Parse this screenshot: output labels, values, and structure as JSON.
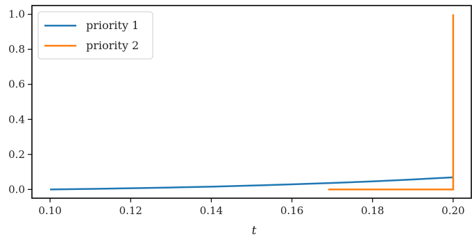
{
  "chart_data": {
    "type": "line",
    "xlabel": "t",
    "ylabel": "",
    "xlim": [
      0.0955,
      0.2045
    ],
    "ylim": [
      -0.05,
      1.05
    ],
    "xticks": [
      0.1,
      0.12,
      0.14,
      0.16,
      0.18,
      0.2
    ],
    "xtick_labels": [
      "0.10",
      "0.12",
      "0.14",
      "0.16",
      "0.18",
      "0.20"
    ],
    "yticks": [
      0.0,
      0.2,
      0.4,
      0.6,
      0.8,
      1.0
    ],
    "ytick_labels": [
      "0.0",
      "0.2",
      "0.4",
      "0.6",
      "0.8",
      "1.0"
    ],
    "grid": false,
    "legend_position": "top-left",
    "series": [
      {
        "name": "priority 1",
        "color": "#1f77b4",
        "x": [
          0.1,
          0.11,
          0.12,
          0.13,
          0.14,
          0.15,
          0.16,
          0.17,
          0.18,
          0.19,
          0.2
        ],
        "y": [
          0.0,
          0.003,
          0.007,
          0.011,
          0.016,
          0.022,
          0.029,
          0.037,
          0.046,
          0.057,
          0.069
        ]
      },
      {
        "name": "priority 2",
        "color": "#ff7f0e",
        "x": [
          0.169,
          0.199,
          0.1999,
          0.2,
          0.2
        ],
        "y": [
          0.0,
          0.0,
          0.0,
          0.0,
          1.0
        ]
      }
    ]
  }
}
